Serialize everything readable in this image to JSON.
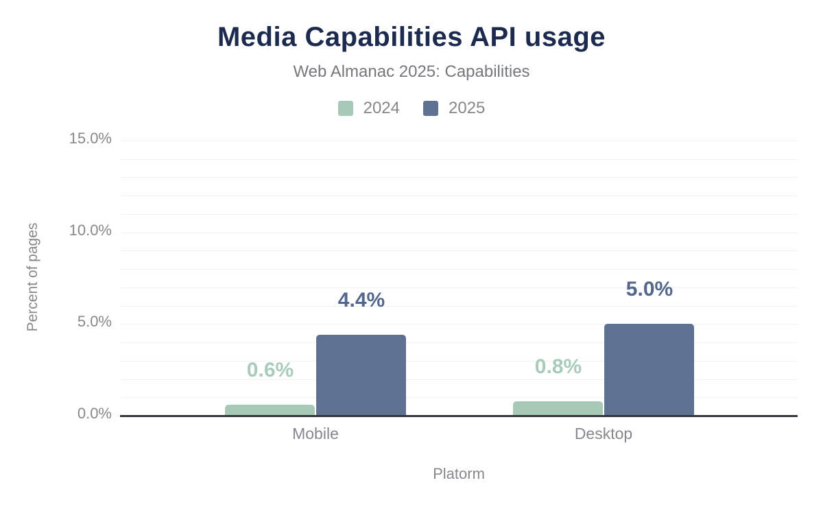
{
  "header": {
    "title": "Media Capabilities API usage",
    "subtitle": "Web Almanac 2025: Capabilities"
  },
  "colors": {
    "title_text": "#1b2a4e",
    "subtitle_text": "#75787b",
    "axis_text": "#85888b",
    "gridline": "#f1f1f2",
    "axis_line": "#34343a",
    "background": "#ffffff"
  },
  "chart_data": {
    "type": "bar",
    "title": "Media Capabilities API usage",
    "subtitle": "Web Almanac 2025: Capabilities",
    "categories": [
      "Mobile",
      "Desktop"
    ],
    "series": [
      {
        "name": "2024",
        "color": "#a7cab8",
        "label_color": "#a9ccba",
        "values": [
          0.6,
          0.8
        ],
        "data_labels": [
          "0.6%",
          "0.8%"
        ]
      },
      {
        "name": "2025",
        "color": "#5f7190",
        "label_color": "#53668c",
        "values": [
          4.4,
          5.0
        ],
        "data_labels": [
          "4.4%",
          "5.0%"
        ]
      }
    ],
    "xlabel": "Platorm",
    "ylabel": "Percent of pages",
    "ylim": [
      0,
      15
    ],
    "yticks": [
      {
        "value": 0,
        "label": "0.0%"
      },
      {
        "value": 5,
        "label": "5.0%"
      },
      {
        "value": 10,
        "label": "10.0%"
      },
      {
        "value": 15,
        "label": "15.0%"
      }
    ],
    "grid": {
      "on": true,
      "minor_step_percent": 1
    },
    "legend_position": "top-center"
  }
}
